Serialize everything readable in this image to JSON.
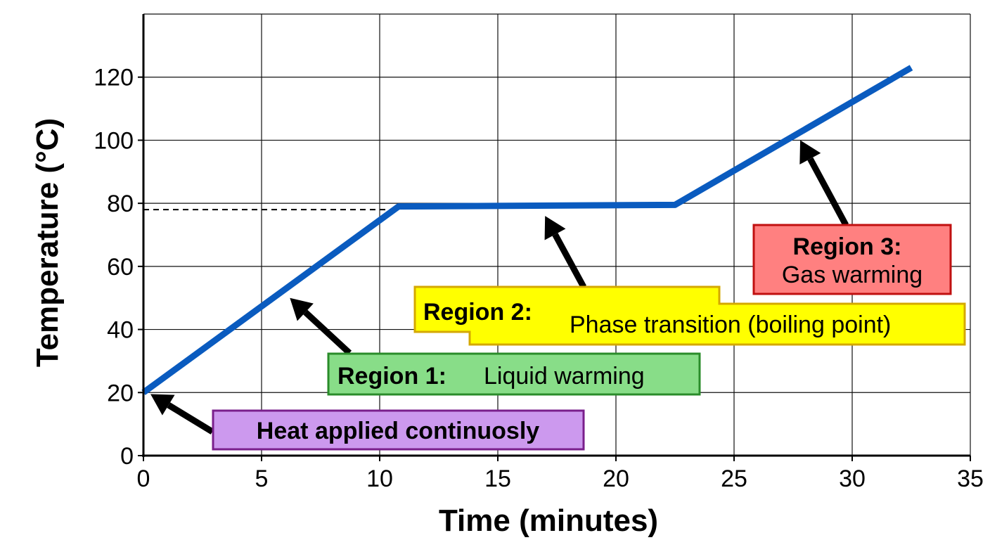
{
  "chart_data": {
    "type": "line",
    "xlabel": "Time (minutes)",
    "ylabel": "Temperature (°C)",
    "xlim": [
      0,
      35
    ],
    "ylim": [
      0,
      140
    ],
    "xticks": [
      0,
      5,
      10,
      15,
      20,
      25,
      30,
      35
    ],
    "yticks": [
      0,
      20,
      40,
      60,
      80,
      100,
      120
    ],
    "grid": true,
    "series": [
      {
        "color": "#0a5bbf",
        "x": [
          0,
          10.8,
          22.5,
          32.5
        ],
        "y": [
          20,
          79,
          79.5,
          123
        ]
      }
    ],
    "reference_lines": [
      {
        "orientation": "horizontal",
        "y": 78,
        "x_end": 10.8,
        "style": "dashed"
      }
    ],
    "annotations": [
      {
        "id": "heat",
        "label": "Heat applied continuosly",
        "box_color": "#cc99ee",
        "border_color": "#7a1f8c",
        "target": [
          0.3,
          19.5
        ]
      },
      {
        "id": "r1",
        "label": "Region 1:",
        "text": "Liquid warming",
        "box_color": "#88dd88",
        "border_color": "#2a8c2a",
        "target": [
          6.2,
          50
        ]
      },
      {
        "id": "r2",
        "label": "Region 2:",
        "text": "Phase transition (boiling point)",
        "box_color": "#ffff00",
        "border_color": "#d4a800",
        "target": [
          17,
          76
        ]
      },
      {
        "id": "r3",
        "label": "Region 3:",
        "text": "Gas warming",
        "box_color": "#ff8080",
        "border_color": "#c01010",
        "target": [
          27.8,
          100
        ]
      }
    ]
  }
}
